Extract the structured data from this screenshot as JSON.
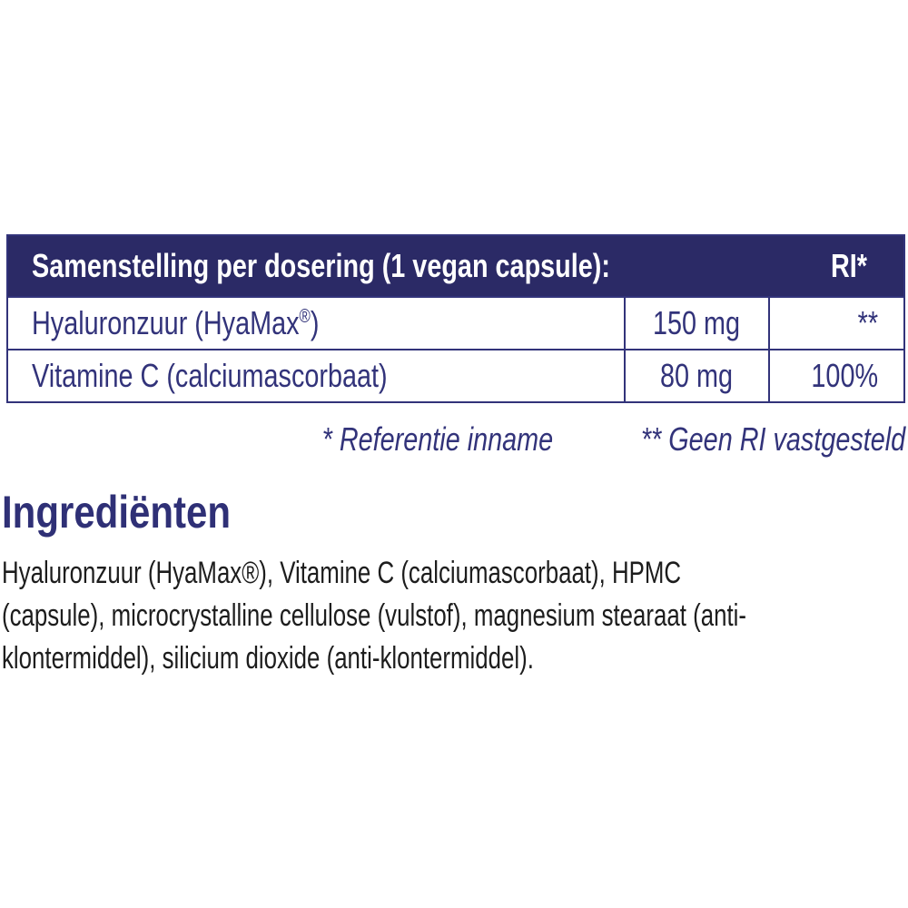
{
  "colors": {
    "header_bg": "#2b2a66",
    "table_ink": "#32337a",
    "heading_ink": "#2f3076",
    "body_ink": "#1d1d1d",
    "header_text": "#ffffff"
  },
  "table": {
    "header": {
      "title": "Samenstelling per dosering (1 vegan capsule):",
      "ri": "RI*"
    },
    "rows": [
      {
        "name_pre": "Hyaluronzuur (HyaMax",
        "name_sup": "®",
        "name_post": ")",
        "amount": "150 mg",
        "ri": "**"
      },
      {
        "name_pre": "Vitamine C (calciumascorbaat)",
        "name_sup": "",
        "name_post": "",
        "amount": "80 mg",
        "ri": "100%"
      }
    ]
  },
  "footnote": {
    "part1": "* Referentie inname",
    "part2": "** Geen RI vastgesteld"
  },
  "ingredients": {
    "heading": "Ingrediënten",
    "lines": [
      "Hyaluronzuur (HyaMax®), Vitamine C (calciumascorbaat), HPMC",
      "(capsule), microcrystalline cellulose (vulstof), magnesium stearaat (anti-",
      "klontermiddel), silicium dioxide (anti-klontermiddel)."
    ]
  }
}
